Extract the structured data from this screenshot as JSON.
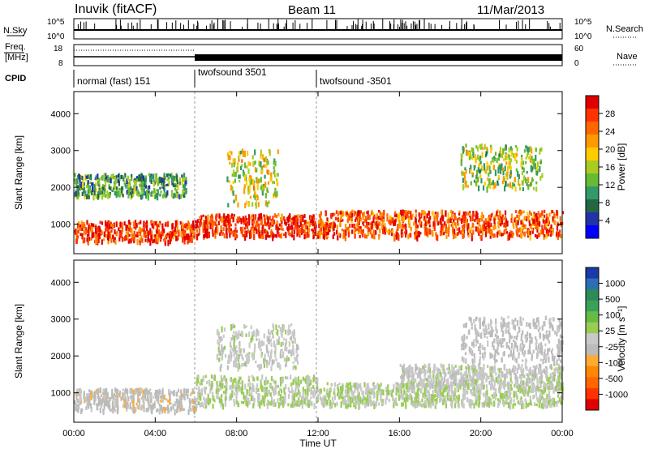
{
  "header": {
    "station": "Inuvik (fitACF)",
    "beam": "Beam 11",
    "date": "11/Mar/2013"
  },
  "top_panels": {
    "nsky_label": "N.Sky",
    "nsearch_label": "N.Search",
    "freq_label_1": "Freq.",
    "freq_label_2": "[MHz]",
    "nave_label": "Nave",
    "cpid_label": "CPID",
    "nsky_ticks": [
      "10^5",
      "10^0"
    ],
    "nsearch_ticks": [
      "10^5",
      "10^0"
    ],
    "freq_ticks": [
      "18",
      "8"
    ],
    "nave_ticks": [
      "60",
      "0"
    ]
  },
  "cpid_segments": [
    {
      "label": "normal (fast) 151",
      "start_h": 0,
      "end_h": 6
    },
    {
      "label": "twofsound 3501",
      "start_h": 6,
      "end_h": 12
    },
    {
      "label": "twofsound -3501",
      "start_h": 12,
      "end_h": 24
    }
  ],
  "axes": {
    "ylabel": "Slant Range [km]",
    "xlabel": "Time UT",
    "range_ticks": [
      "1000",
      "2000",
      "3000",
      "4000"
    ],
    "time_ticks": [
      "00:00",
      "04:00",
      "08:00",
      "12:00",
      "16:00",
      "20:00",
      "00:00"
    ]
  },
  "power_colorbar": {
    "label": "Power [dB]",
    "ticks": [
      "28",
      "24",
      "20",
      "16",
      "12",
      "8",
      "4"
    ],
    "colors": [
      "#e00000",
      "#ff3300",
      "#ff6600",
      "#ff9900",
      "#ffcc00",
      "#aacc22",
      "#66bb33",
      "#339966",
      "#226644",
      "#2233aa",
      "#0000ff"
    ]
  },
  "velocity_colorbar": {
    "label": "Velocity [m s⁻¹]",
    "ticks": [
      "1000",
      "500",
      "100",
      "25",
      "-25",
      "-100",
      "-500",
      "-1000"
    ],
    "colors": [
      "#1a3aa8",
      "#2d6eb3",
      "#2e8b57",
      "#3aa05a",
      "#66bb44",
      "#99cc55",
      "#c8c8c8",
      "#bbbbbb",
      "#ffaa33",
      "#ff8800",
      "#ff6600",
      "#ff3300",
      "#e00000"
    ]
  },
  "chart_data": {
    "type": "heatmap",
    "title": "Inuvik (fitACF) Beam 11 11/Mar/2013",
    "xlabel": "Time UT",
    "ylabel": "Slant Range [km]",
    "xlim_hours": [
      0,
      24
    ],
    "ylim_km": [
      200,
      4600
    ],
    "panels": [
      {
        "name": "Power [dB]",
        "range_db": [
          0,
          30
        ],
        "bands": [
          {
            "t_start": 0,
            "t_end": 6,
            "r_center": 850,
            "r_width": 550,
            "value_db": 27
          },
          {
            "t_start": 6,
            "t_end": 12,
            "r_center": 1000,
            "r_width": 600,
            "value_db": 28
          },
          {
            "t_start": 12,
            "t_end": 24,
            "r_center": 1050,
            "r_width": 700,
            "value_db": 26
          },
          {
            "t_start": 7.5,
            "t_end": 10,
            "r_center": 2300,
            "r_width": 1500,
            "value_db": 16
          },
          {
            "t_start": 0,
            "t_end": 5.5,
            "r_center": 2100,
            "r_width": 600,
            "value_db": 10
          },
          {
            "t_start": 19,
            "t_end": 23,
            "r_center": 2600,
            "r_width": 1200,
            "value_db": 14
          }
        ]
      },
      {
        "name": "Velocity [m s-1]",
        "range_ms": [
          -1000,
          1000
        ],
        "bands": [
          {
            "t_start": 0,
            "t_end": 6,
            "r_center": 850,
            "r_width": 600,
            "value_ms": -150
          },
          {
            "t_start": 6,
            "t_end": 12,
            "r_center": 1100,
            "r_width": 800,
            "value_ms": 60
          },
          {
            "t_start": 12,
            "t_end": 24,
            "r_center": 1000,
            "r_width": 600,
            "value_ms": 80
          },
          {
            "t_start": 7,
            "t_end": 11,
            "r_center": 2300,
            "r_width": 1200,
            "value_ms": 0
          },
          {
            "t_start": 16,
            "t_end": 24,
            "r_center": 1500,
            "r_width": 600,
            "value_ms": -10
          },
          {
            "t_start": 19,
            "t_end": 24,
            "r_center": 2500,
            "r_width": 1200,
            "value_ms": -120
          }
        ]
      }
    ]
  }
}
